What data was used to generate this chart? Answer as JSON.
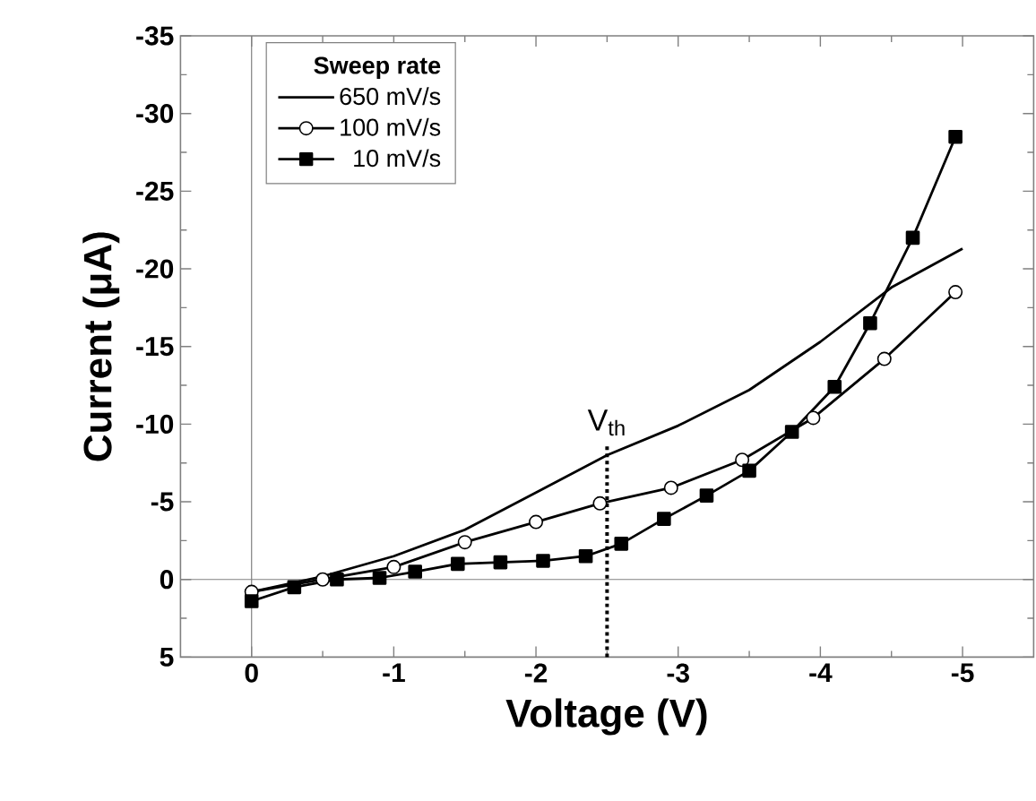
{
  "chart_data": {
    "type": "line",
    "xlabel": "Voltage (V)",
    "ylabel": "Current (μA)",
    "legend_title": "Sweep rate",
    "legend": "top left",
    "xlim": [
      0.5,
      -5.5
    ],
    "ylim": [
      5,
      -35
    ],
    "xticks": [
      0,
      -1,
      -2,
      -3,
      -4,
      -5
    ],
    "yticks": [
      5,
      0,
      -5,
      -10,
      -15,
      -20,
      -25,
      -30,
      -35
    ],
    "series": [
      {
        "name": "650 mV/s",
        "color": "#000000",
        "marker": "none",
        "x": [
          0,
          -0.5,
          -1,
          -1.5,
          -2,
          -2.5,
          -3,
          -3.5,
          -4,
          -4.5,
          -5
        ],
        "values": [
          0.8,
          -0.2,
          -1.5,
          -3.2,
          -5.6,
          -8.0,
          -9.9,
          -12.2,
          -15.3,
          -18.8,
          -21.3
        ]
      },
      {
        "name": "100 mV/s",
        "color": "#000000",
        "marker": "circle",
        "x": [
          0,
          -0.5,
          -1,
          -1.5,
          -2,
          -2.45,
          -2.95,
          -3.45,
          -3.95,
          -4.45,
          -4.95
        ],
        "values": [
          0.8,
          0,
          -0.8,
          -2.4,
          -3.7,
          -4.9,
          -5.9,
          -7.7,
          -10.4,
          -14.2,
          -18.5
        ]
      },
      {
        "name": "10 mV/s",
        "color": "#000000",
        "marker": "square",
        "x": [
          0,
          -0.3,
          -0.6,
          -0.9,
          -1.15,
          -1.45,
          -1.75,
          -2.05,
          -2.35,
          -2.6,
          -2.9,
          -3.2,
          -3.5,
          -3.8,
          -4.1,
          -4.35,
          -4.65,
          -4.95
        ],
        "values": [
          1.4,
          0.5,
          0,
          -0.1,
          -0.5,
          -1.0,
          -1.1,
          -1.2,
          -1.5,
          -2.3,
          -3.9,
          -5.4,
          -7.0,
          -9.5,
          -12.4,
          -16.5,
          -22.0,
          -28.5
        ]
      }
    ],
    "ref_lines": [
      {
        "axis": "x",
        "value": 0,
        "line_style": "solid"
      },
      {
        "axis": "y",
        "value": 0,
        "line_style": "solid"
      },
      {
        "axis": "x",
        "value": -2.5,
        "label": "V$_{th}$",
        "line_style": "dotted"
      }
    ]
  }
}
